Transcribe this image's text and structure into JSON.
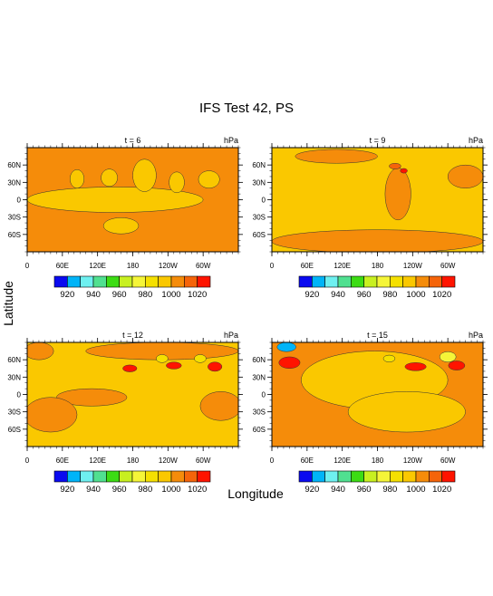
{
  "figure": {
    "title": "IFS Test 42, PS",
    "xlabel": "Longitude",
    "ylabel": "Latitude"
  },
  "chart_data": [
    {
      "type": "heatmap",
      "subtitle": "t = 6",
      "units": "hPa",
      "x_ticks": [
        "0",
        "60E",
        "120E",
        "180",
        "120W",
        "60W"
      ],
      "y_ticks": [
        "60N",
        "30N",
        "0",
        "30S",
        "60S"
      ],
      "x_range_deg": [
        0,
        360
      ],
      "y_range_deg": [
        -90,
        90
      ],
      "background_level": 1000,
      "features": [
        {
          "level": 990,
          "lon": 150,
          "lat": 0,
          "rx": 150,
          "ry": 22
        },
        {
          "level": 990,
          "lon": 85,
          "lat": 36,
          "rx": 12,
          "ry": 16
        },
        {
          "level": 990,
          "lon": 140,
          "lat": 38,
          "rx": 14,
          "ry": 15
        },
        {
          "level": 990,
          "lon": 200,
          "lat": 42,
          "rx": 20,
          "ry": 28
        },
        {
          "level": 990,
          "lon": 255,
          "lat": 30,
          "rx": 13,
          "ry": 18
        },
        {
          "level": 990,
          "lon": 310,
          "lat": 35,
          "rx": 18,
          "ry": 15
        },
        {
          "level": 990,
          "lon": 160,
          "lat": -45,
          "rx": 30,
          "ry": 14
        }
      ]
    },
    {
      "type": "heatmap",
      "subtitle": "t = 9",
      "units": "hPa",
      "x_ticks": [
        "0",
        "60E",
        "120E",
        "180",
        "120W",
        "60W"
      ],
      "y_ticks": [
        "60N",
        "30N",
        "0",
        "30S",
        "60S"
      ],
      "x_range_deg": [
        0,
        360
      ],
      "y_range_deg": [
        -90,
        90
      ],
      "background_level": 990,
      "features": [
        {
          "level": 1000,
          "lon": 110,
          "lat": 75,
          "rx": 70,
          "ry": 12
        },
        {
          "level": 1000,
          "lon": 215,
          "lat": 10,
          "rx": 22,
          "ry": 45
        },
        {
          "level": 1000,
          "lon": 330,
          "lat": 40,
          "rx": 30,
          "ry": 20
        },
        {
          "level": 1000,
          "lon": 180,
          "lat": -72,
          "rx": 180,
          "ry": 20
        },
        {
          "level": 1010,
          "lon": 210,
          "lat": 58,
          "rx": 10,
          "ry": 5
        },
        {
          "level": 1020,
          "lon": 225,
          "lat": 50,
          "rx": 6,
          "ry": 4
        }
      ]
    },
    {
      "type": "heatmap",
      "subtitle": "t = 12",
      "units": "hPa",
      "x_ticks": [
        "0",
        "60E",
        "120E",
        "180",
        "120W",
        "60W"
      ],
      "y_ticks": [
        "60N",
        "30N",
        "0",
        "30S",
        "60S"
      ],
      "x_range_deg": [
        0,
        360
      ],
      "y_range_deg": [
        -90,
        90
      ],
      "background_level": 990,
      "features": [
        {
          "level": 1000,
          "lon": 20,
          "lat": 75,
          "rx": 25,
          "ry": 15
        },
        {
          "level": 1000,
          "lon": 230,
          "lat": 75,
          "rx": 130,
          "ry": 15
        },
        {
          "level": 1000,
          "lon": 110,
          "lat": -5,
          "rx": 60,
          "ry": 15
        },
        {
          "level": 1000,
          "lon": 40,
          "lat": -35,
          "rx": 45,
          "ry": 30
        },
        {
          "level": 1000,
          "lon": 330,
          "lat": -20,
          "rx": 35,
          "ry": 25
        },
        {
          "level": 1020,
          "lon": 175,
          "lat": 45,
          "rx": 12,
          "ry": 6
        },
        {
          "level": 1020,
          "lon": 250,
          "lat": 50,
          "rx": 13,
          "ry": 6
        },
        {
          "level": 1020,
          "lon": 320,
          "lat": 48,
          "rx": 12,
          "ry": 8
        },
        {
          "level": 980,
          "lon": 230,
          "lat": 62,
          "rx": 10,
          "ry": 7
        },
        {
          "level": 980,
          "lon": 295,
          "lat": 62,
          "rx": 10,
          "ry": 7
        }
      ]
    },
    {
      "type": "heatmap",
      "subtitle": "t = 15",
      "units": "hPa",
      "x_ticks": [
        "0",
        "60E",
        "120E",
        "180",
        "120W",
        "60W"
      ],
      "y_ticks": [
        "60N",
        "30N",
        "0",
        "30S",
        "60S"
      ],
      "x_range_deg": [
        0,
        360
      ],
      "y_range_deg": [
        -90,
        90
      ],
      "background_level": 1000,
      "features": [
        {
          "level": 990,
          "lon": 175,
          "lat": 25,
          "rx": 125,
          "ry": 50
        },
        {
          "level": 990,
          "lon": 230,
          "lat": -30,
          "rx": 100,
          "ry": 35
        },
        {
          "level": 1020,
          "lon": 30,
          "lat": 55,
          "rx": 18,
          "ry": 10
        },
        {
          "level": 1020,
          "lon": 245,
          "lat": 48,
          "rx": 18,
          "ry": 7
        },
        {
          "level": 1020,
          "lon": 315,
          "lat": 50,
          "rx": 14,
          "ry": 8
        },
        {
          "level": 920,
          "lon": 25,
          "lat": 82,
          "rx": 16,
          "ry": 8
        },
        {
          "level": 970,
          "lon": 300,
          "lat": 65,
          "rx": 14,
          "ry": 9
        },
        {
          "level": 980,
          "lon": 200,
          "lat": 62,
          "rx": 10,
          "ry": 6
        }
      ]
    }
  ],
  "colorbar": {
    "levels": [
      910,
      920,
      930,
      940,
      950,
      960,
      970,
      980,
      990,
      1000,
      1010,
      1020,
      1030
    ],
    "labels": [
      "920",
      "940",
      "960",
      "980",
      "1000",
      "1020"
    ],
    "colors": [
      "#0a0af0",
      "#00b4f8",
      "#6ef0f0",
      "#50e090",
      "#3cdc14",
      "#c8f020",
      "#f5f538",
      "#f5e000",
      "#fac800",
      "#f58c0a",
      "#f5640a",
      "#ff1400"
    ]
  }
}
